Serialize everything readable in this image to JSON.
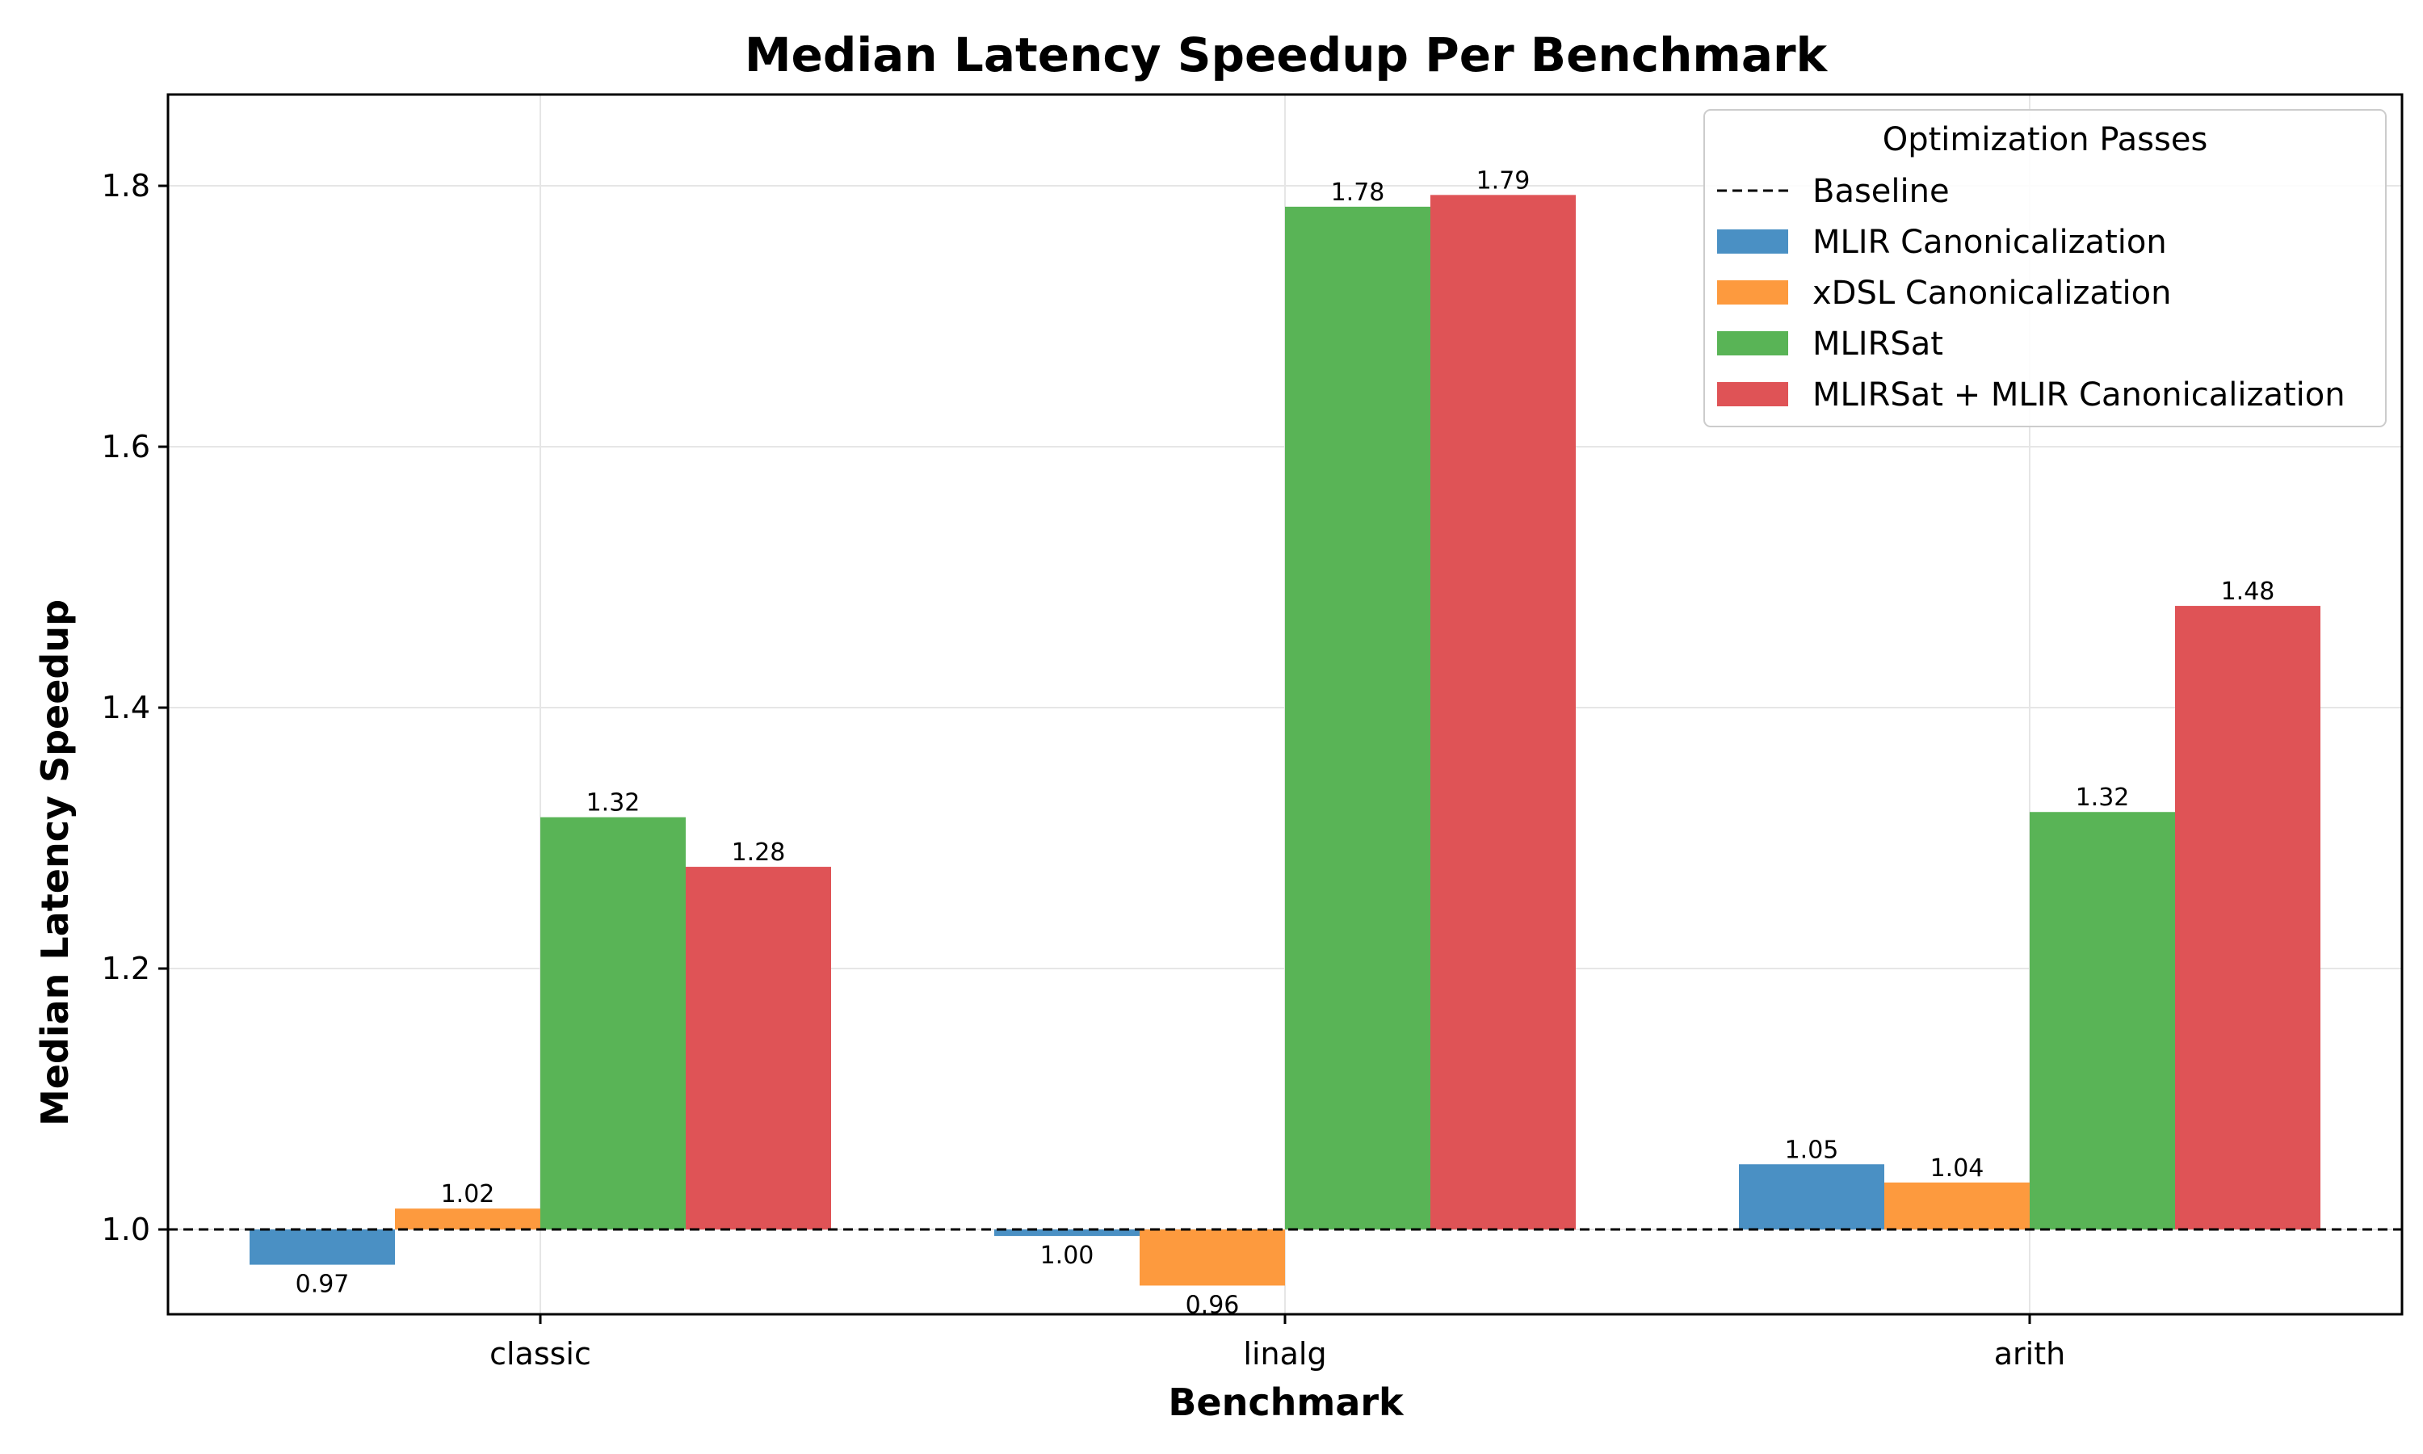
{
  "chart_data": {
    "type": "bar",
    "title": "Median Latency Speedup Per Benchmark",
    "xlabel": "Benchmark",
    "ylabel": "Median Latency Speedup",
    "categories": [
      "classic",
      "linalg",
      "arith"
    ],
    "ylim": [
      0.935,
      1.87
    ],
    "yticks": [
      1.0,
      1.2,
      1.4,
      1.6,
      1.8
    ],
    "ytick_labels": [
      "1.0",
      "1.2",
      "1.4",
      "1.6",
      "1.8"
    ],
    "baseline": {
      "name": "Baseline",
      "value": 1.0,
      "color": "#000000",
      "style": "dashed"
    },
    "grid": true,
    "legend": {
      "title": "Optimization Passes",
      "position": "top-right"
    },
    "series": [
      {
        "name": "MLIR Canonicalization",
        "color": "#4a90c4",
        "values": [
          0.973,
          0.995,
          1.05
        ],
        "labels": [
          "0.97",
          "1.00",
          "1.05"
        ]
      },
      {
        "name": "xDSL Canonicalization",
        "color": "#fd9a3e",
        "values": [
          1.016,
          0.957,
          1.036
        ],
        "labels": [
          "1.02",
          "0.96",
          "1.04"
        ]
      },
      {
        "name": "MLIRSat",
        "color": "#59b456",
        "values": [
          1.316,
          1.784,
          1.32
        ],
        "labels": [
          "1.32",
          "1.78",
          "1.32"
        ]
      },
      {
        "name": "MLIRSat + MLIR Canonicalization",
        "color": "#df5356",
        "values": [
          1.278,
          1.793,
          1.478
        ],
        "labels": [
          "1.28",
          "1.79",
          "1.48"
        ]
      }
    ]
  }
}
